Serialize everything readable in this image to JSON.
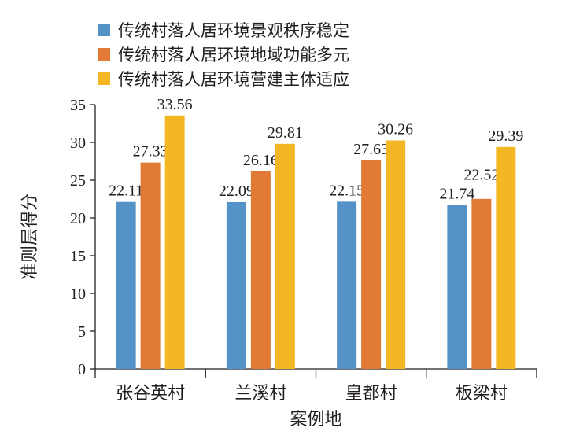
{
  "chart_data": {
    "type": "bar",
    "title": "",
    "xlabel": "案例地",
    "ylabel": "准则层得分",
    "categories": [
      "张谷英村",
      "兰溪村",
      "皇都村",
      "板梁村"
    ],
    "ylim": [
      0,
      35
    ],
    "yticks": [
      0,
      5,
      10,
      15,
      20,
      25,
      30,
      35
    ],
    "grid": false,
    "legend_position": "top-left",
    "series": [
      {
        "name": "传统村落人居环境景观秩序稳定",
        "color": "#5592c8",
        "values": [
          22.11,
          22.09,
          22.15,
          21.74
        ],
        "labels": [
          "22.11",
          "22.09",
          "22.15",
          "21.74"
        ]
      },
      {
        "name": "传统村落人居环境地域功能多元",
        "color": "#e07a35",
        "values": [
          27.33,
          26.16,
          27.63,
          22.52
        ],
        "labels": [
          "27.33",
          "26.16",
          "27.63",
          "22.52"
        ]
      },
      {
        "name": "传统村落人居环境营建主体适应",
        "color": "#f2b722",
        "values": [
          33.56,
          29.81,
          30.26,
          29.39
        ],
        "labels": [
          "33.56",
          "29.81",
          "30.26",
          "29.39"
        ]
      }
    ]
  }
}
